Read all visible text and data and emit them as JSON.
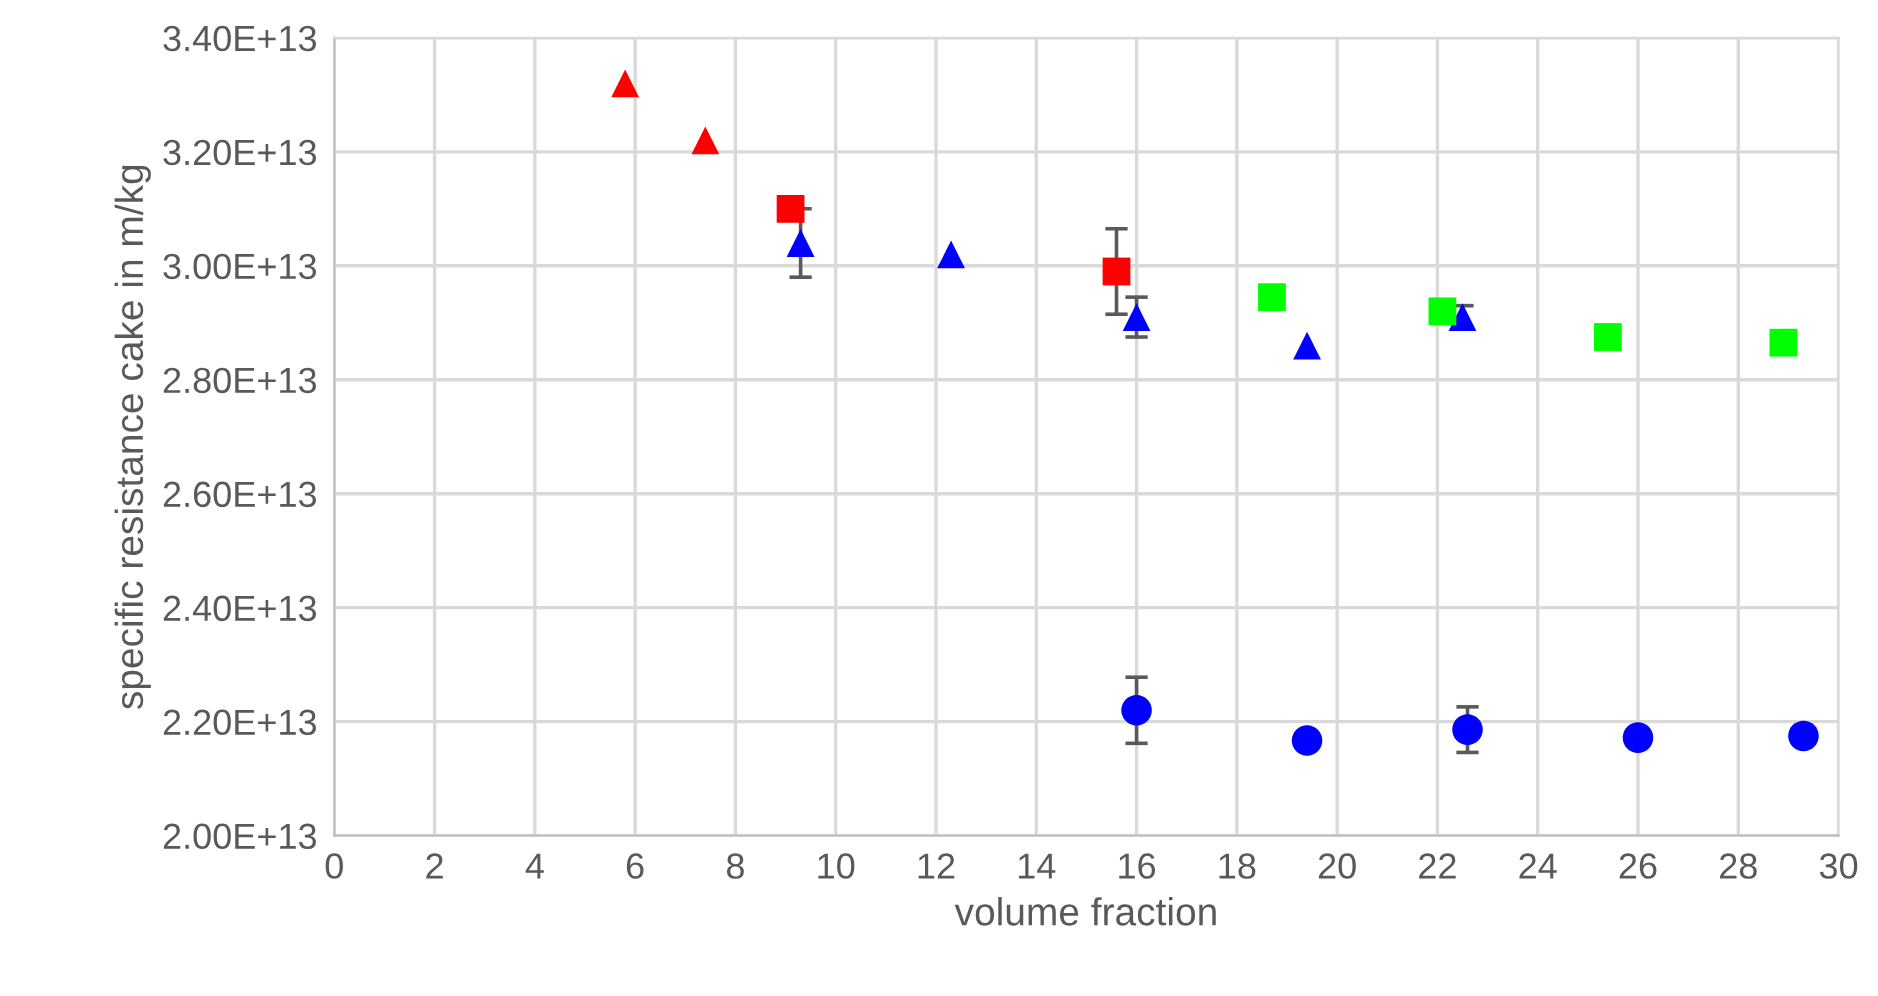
{
  "chart_data": {
    "type": "scatter",
    "xlabel": "volume fraction",
    "ylabel": "specific resistance cake in m/kg",
    "xlim": [
      0,
      30
    ],
    "xticks": [
      0,
      2,
      4,
      6,
      8,
      10,
      12,
      14,
      16,
      18,
      20,
      22,
      24,
      26,
      28,
      30
    ],
    "ylim": [
      20000000000000.0,
      34000000000000.0
    ],
    "yticks": [
      {
        "value": 20000000000000.0,
        "label": "2.00E+13"
      },
      {
        "value": 22000000000000.0,
        "label": "2.20E+13"
      },
      {
        "value": 24000000000000.0,
        "label": "2.40E+13"
      },
      {
        "value": 26000000000000.0,
        "label": "2.60E+13"
      },
      {
        "value": 28000000000000.0,
        "label": "2.80E+13"
      },
      {
        "value": 30000000000000.0,
        "label": "3.00E+13"
      },
      {
        "value": 32000000000000.0,
        "label": "3.20E+13"
      },
      {
        "value": 34000000000000.0,
        "label": "3.40E+13"
      }
    ],
    "grid": true,
    "series": [
      {
        "color": "#ff0000",
        "marker": "triangle",
        "x": [
          5.8,
          7.4
        ],
        "values": [
          33200000000000.0,
          32200000000000.0
        ],
        "errors": [
          null,
          null
        ]
      },
      {
        "color": "#ff0000",
        "marker": "square",
        "x": [
          9.1,
          15.6
        ],
        "values": [
          31000000000000.0,
          29900000000000.0
        ],
        "errors": [
          null,
          750000000000.0
        ]
      },
      {
        "color": "#0000ff",
        "marker": "triangle",
        "x": [
          9.3,
          12.3,
          16.0,
          19.4,
          22.5
        ],
        "values": [
          30400000000000.0,
          30200000000000.0,
          29100000000000.0,
          28600000000000.0,
          29100000000000.0
        ],
        "errors": [
          600000000000.0,
          null,
          350000000000.0,
          null,
          200000000000.0
        ]
      },
      {
        "color": "#00ff00",
        "marker": "square",
        "x": [
          18.7,
          22.1,
          25.4,
          28.9
        ],
        "values": [
          29450000000000.0,
          29200000000000.0,
          28750000000000.0,
          28650000000000.0
        ],
        "errors": [
          null,
          null,
          null,
          null
        ]
      },
      {
        "color": "#0000ff",
        "marker": "circle",
        "x": [
          16.0,
          19.4,
          22.6,
          26.0,
          29.3
        ],
        "values": [
          22200000000000.0,
          21670000000000.0,
          21860000000000.0,
          21720000000000.0,
          21750000000000.0
        ],
        "errors": [
          580000000000.0,
          null,
          400000000000.0,
          null,
          null
        ]
      }
    ]
  }
}
